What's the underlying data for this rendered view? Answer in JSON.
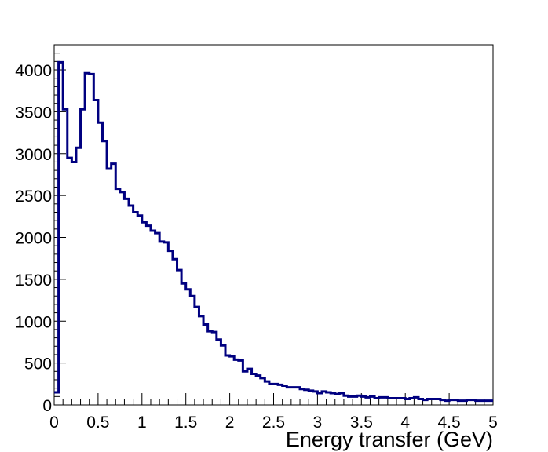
{
  "chart_data": {
    "type": "bar",
    "style": "step-histogram",
    "title": "",
    "xlabel": "Energy transfer (GeV)",
    "ylabel": "",
    "xlim": [
      0,
      5
    ],
    "ylim": [
      0,
      4300
    ],
    "grid": false,
    "line_color": "#000080",
    "x_ticks": [
      {
        "value": 0,
        "label": "0"
      },
      {
        "value": 0.5,
        "label": "0.5"
      },
      {
        "value": 1,
        "label": "1"
      },
      {
        "value": 1.5,
        "label": "1.5"
      },
      {
        "value": 2,
        "label": "2"
      },
      {
        "value": 2.5,
        "label": "2.5"
      },
      {
        "value": 3,
        "label": "3"
      },
      {
        "value": 3.5,
        "label": "3.5"
      },
      {
        "value": 4,
        "label": "4"
      },
      {
        "value": 4.5,
        "label": "4.5"
      },
      {
        "value": 5,
        "label": "5"
      }
    ],
    "y_ticks": [
      {
        "value": 0,
        "label": "0"
      },
      {
        "value": 500,
        "label": "500"
      },
      {
        "value": 1000,
        "label": "1000"
      },
      {
        "value": 1500,
        "label": "1500"
      },
      {
        "value": 2000,
        "label": "2000"
      },
      {
        "value": 2500,
        "label": "2500"
      },
      {
        "value": 3000,
        "label": "3000"
      },
      {
        "value": 3500,
        "label": "3500"
      },
      {
        "value": 4000,
        "label": "4000"
      }
    ],
    "bin_width": 0.05,
    "bin_edges_start": 0,
    "series": [
      {
        "values": [
          150,
          4090,
          3530,
          2950,
          2900,
          3070,
          3530,
          3960,
          3950,
          3640,
          3370,
          3150,
          2820,
          2880,
          2580,
          2540,
          2460,
          2380,
          2300,
          2260,
          2180,
          2140,
          2080,
          2050,
          1950,
          1940,
          1840,
          1740,
          1610,
          1450,
          1380,
          1300,
          1170,
          1060,
          960,
          880,
          870,
          780,
          710,
          590,
          580,
          540,
          530,
          400,
          430,
          370,
          350,
          320,
          280,
          250,
          250,
          240,
          230,
          210,
          210,
          210,
          190,
          180,
          170,
          160,
          140,
          160,
          150,
          140,
          130,
          140,
          110,
          100,
          100,
          110,
          100,
          90,
          100,
          80,
          90,
          90,
          80,
          80,
          80,
          80,
          70,
          80,
          90,
          70,
          60,
          70,
          70,
          70,
          60,
          50,
          60,
          60,
          50,
          50,
          60,
          60,
          50,
          50,
          50,
          50
        ]
      }
    ]
  }
}
